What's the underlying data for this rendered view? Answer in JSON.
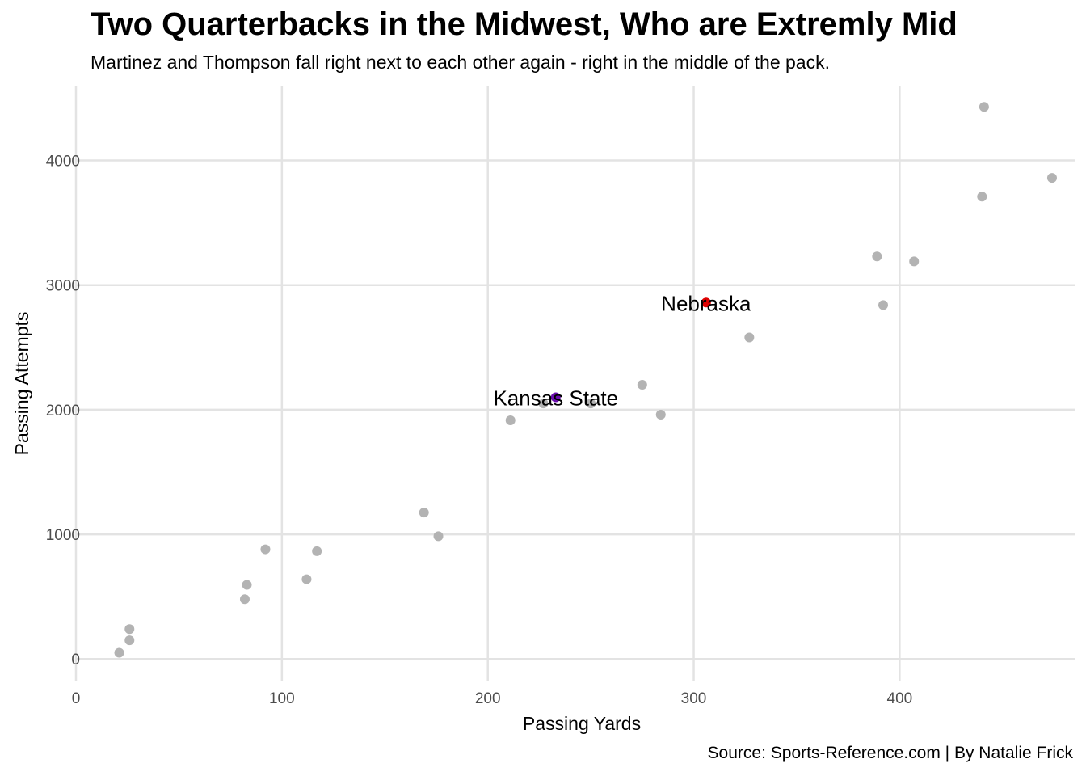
{
  "chart_data": {
    "type": "scatter",
    "title": "Two Quarterbacks in the Midwest, Who are Extremly Mid",
    "subtitle": "Martinez and Thompson fall right next to each other again - right in the middle of the pack.",
    "caption": "Source: Sports-Reference.com | By Natalie Frick",
    "xlabel": "Passing Yards",
    "ylabel": "Passing Attempts",
    "xlim": [
      0,
      485
    ],
    "ylim": [
      -180,
      4600
    ],
    "xticks": [
      0,
      100,
      200,
      300,
      400
    ],
    "yticks": [
      0,
      1000,
      2000,
      3000,
      4000
    ],
    "grid": true,
    "point_color": "#b3b3b3",
    "points": [
      {
        "x": 21,
        "y": 50
      },
      {
        "x": 26,
        "y": 150
      },
      {
        "x": 26,
        "y": 240
      },
      {
        "x": 82,
        "y": 480
      },
      {
        "x": 83,
        "y": 595
      },
      {
        "x": 92,
        "y": 880
      },
      {
        "x": 112,
        "y": 640
      },
      {
        "x": 117,
        "y": 865
      },
      {
        "x": 169,
        "y": 1175
      },
      {
        "x": 176,
        "y": 985
      },
      {
        "x": 211,
        "y": 1915
      },
      {
        "x": 227,
        "y": 2050
      },
      {
        "x": 250,
        "y": 2050
      },
      {
        "x": 275,
        "y": 2200
      },
      {
        "x": 284,
        "y": 1960
      },
      {
        "x": 327,
        "y": 2580
      },
      {
        "x": 389,
        "y": 3230
      },
      {
        "x": 392,
        "y": 2840
      },
      {
        "x": 407,
        "y": 3190
      },
      {
        "x": 440,
        "y": 3710
      },
      {
        "x": 441,
        "y": 4430
      },
      {
        "x": 474,
        "y": 3860
      }
    ],
    "highlighted": [
      {
        "label": "Kansas State",
        "x": 233,
        "y": 2100,
        "color": "#6a0dad"
      },
      {
        "label": "Nebraska",
        "x": 306,
        "y": 2860,
        "color": "#e00000"
      }
    ]
  }
}
